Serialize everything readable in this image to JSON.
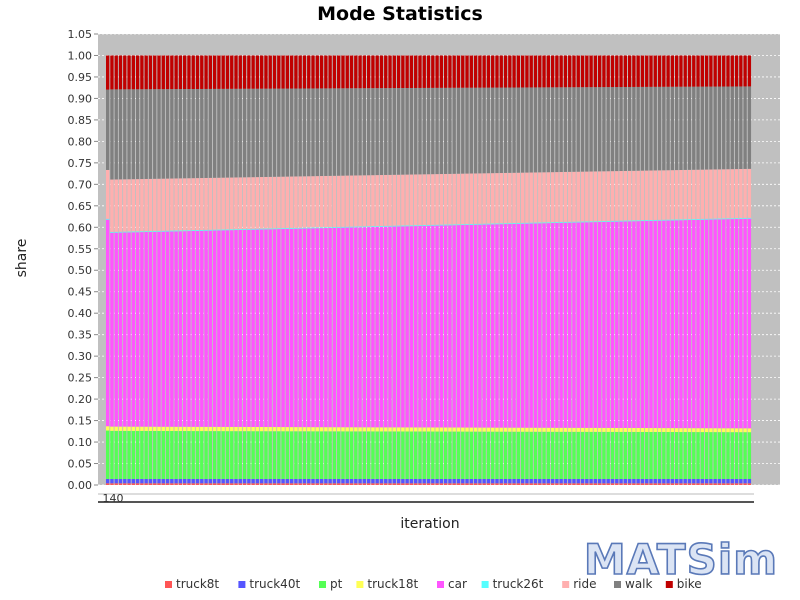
{
  "chart_data": {
    "type": "bar",
    "stacked": true,
    "title": "Mode Statistics",
    "xlabel": "iteration",
    "ylabel": "share",
    "ylim": [
      0,
      1.05
    ],
    "yticks": [
      "0.00",
      "0.05",
      "0.10",
      "0.15",
      "0.20",
      "0.25",
      "0.30",
      "0.35",
      "0.40",
      "0.45",
      "0.50",
      "0.55",
      "0.60",
      "0.65",
      "0.70",
      "0.75",
      "0.80",
      "0.85",
      "0.90",
      "0.95",
      "1.00",
      "1.05"
    ],
    "xtick_text": "140",
    "iterations": {
      "count": 151,
      "first": 0,
      "last": 150
    },
    "grid": true,
    "legend_position": "bottom",
    "series": [
      {
        "name": "truck8t",
        "color": "#ff5555",
        "start": 0.004,
        "end": 0.004
      },
      {
        "name": "truck40t",
        "color": "#5555ff",
        "start": 0.01,
        "end": 0.01
      },
      {
        "name": "pt",
        "color": "#55ff55",
        "start": 0.112,
        "end": 0.109
      },
      {
        "name": "truck18t",
        "color": "#ffff55",
        "start": 0.01,
        "end": 0.009
      },
      {
        "name": "car",
        "color": "#ff55ff",
        "start": 0.451,
        "end": 0.488
      },
      {
        "name": "truck26t",
        "color": "#55ffff",
        "start": 0.002,
        "end": 0.002
      },
      {
        "name": "ride",
        "color": "#ffafaf",
        "start": 0.122,
        "end": 0.114
      },
      {
        "name": "walk",
        "color": "#808080",
        "start": 0.21,
        "end": 0.192
      },
      {
        "name": "bike",
        "color": "#c00000",
        "start": 0.079,
        "end": 0.072
      }
    ],
    "first_iteration_override": {
      "car": 0.478,
      "ride": 0.113,
      "walk": 0.186
    }
  },
  "logo_text": "MATSim",
  "colors": {
    "plot_background": "#c0c0c0",
    "gridline": "#ffffff"
  }
}
